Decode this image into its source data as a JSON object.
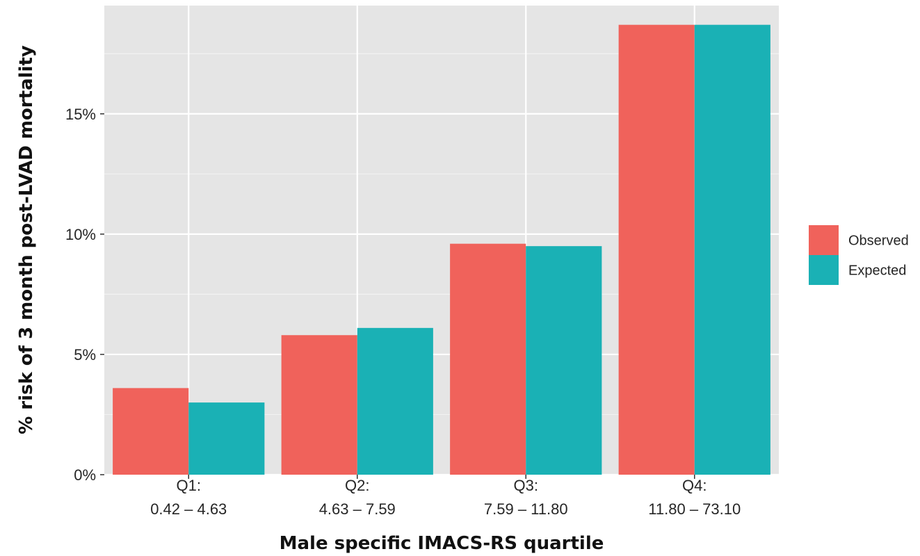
{
  "chart_data": {
    "type": "bar",
    "title": "",
    "xlabel": "Male specific IMACS-RS quartile",
    "ylabel": "% risk of 3 month post-LVAD mortality",
    "categories": [
      {
        "line1": "Q1:",
        "line2": "0.42 – 4.63"
      },
      {
        "line1": "Q2:",
        "line2": "4.63 – 7.59"
      },
      {
        "line1": "Q3:",
        "line2": "7.59 – 11.80"
      },
      {
        "line1": "Q4:",
        "line2": "11.80 – 73.10"
      }
    ],
    "series": [
      {
        "name": "Observed",
        "color": "#F0625B",
        "values": [
          3.6,
          5.8,
          9.6,
          18.7
        ]
      },
      {
        "name": "Expected",
        "color": "#1AB1B5",
        "values": [
          3.0,
          6.1,
          9.5,
          18.7
        ]
      }
    ],
    "ylim": [
      0,
      19.5
    ],
    "yticks": [
      {
        "value": 0,
        "label": "0%"
      },
      {
        "value": 5,
        "label": "5%"
      },
      {
        "value": 10,
        "label": "10%"
      },
      {
        "value": 15,
        "label": "15%"
      }
    ],
    "y_minor_gridlines": [
      2.5,
      7.5,
      12.5,
      17.5
    ],
    "grid": true,
    "panel_background": "#E5E5E5",
    "legend_position": "right"
  }
}
